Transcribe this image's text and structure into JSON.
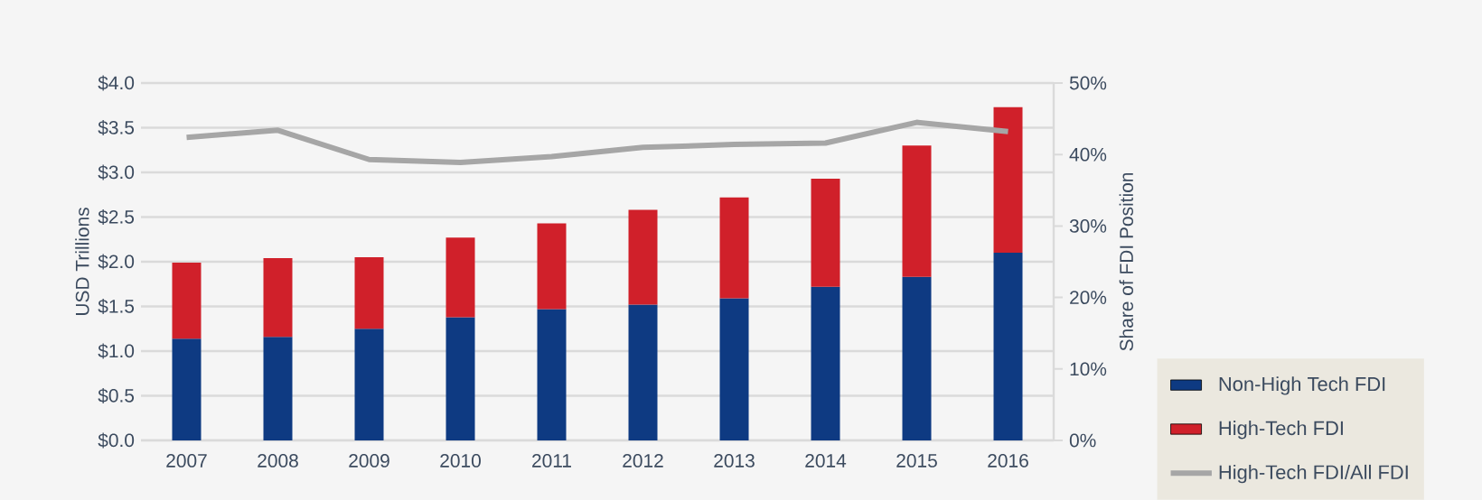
{
  "chart_data": {
    "type": "bar",
    "stacked": true,
    "categories": [
      "2007",
      "2008",
      "2009",
      "2010",
      "2011",
      "2012",
      "2013",
      "2014",
      "2015",
      "2016"
    ],
    "ylabel": "USD Trillions",
    "y2label": "Share of FDI Position",
    "ylim": [
      0,
      4
    ],
    "yticks": [
      {
        "value": 0,
        "label": "$0.0"
      },
      {
        "value": 0.5,
        "label": "$0.5"
      },
      {
        "value": 1,
        "label": "$1.0"
      },
      {
        "value": 1.5,
        "label": "$1.5"
      },
      {
        "value": 2,
        "label": "$2.0"
      },
      {
        "value": 2.5,
        "label": "$2.5"
      },
      {
        "value": 3,
        "label": "$3.0"
      },
      {
        "value": 3.5,
        "label": "$3.5"
      },
      {
        "value": 4,
        "label": "$4.0"
      }
    ],
    "y2lim": [
      0,
      50
    ],
    "y2ticks": [
      {
        "value": 0,
        "label": "0%"
      },
      {
        "value": 10,
        "label": "10%"
      },
      {
        "value": 20,
        "label": "20%"
      },
      {
        "value": 30,
        "label": "30%"
      },
      {
        "value": 40,
        "label": "40%"
      },
      {
        "value": 50,
        "label": "50%"
      }
    ],
    "grid": "y",
    "legend": "bottom right",
    "series": [
      {
        "name": "Non-High Tech FDI",
        "color": "#0e3a82",
        "values": [
          1.14,
          1.16,
          1.25,
          1.38,
          1.47,
          1.52,
          1.59,
          1.72,
          1.83,
          2.1
        ]
      },
      {
        "name": "High-Tech FDI",
        "color": "#d0202a",
        "values": [
          0.85,
          0.88,
          0.8,
          0.89,
          0.96,
          1.06,
          1.13,
          1.21,
          1.47,
          1.63
        ]
      },
      {
        "name": "High-Tech FDI/All FDI",
        "type": "line",
        "axis": "y2",
        "color": "#a6a6a6",
        "values": [
          42.4,
          43.4,
          39.3,
          38.9,
          39.7,
          41.0,
          41.4,
          41.6,
          44.5,
          43.2
        ]
      }
    ]
  }
}
